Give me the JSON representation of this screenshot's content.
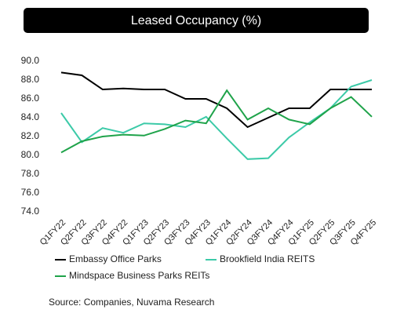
{
  "chart_data": {
    "type": "line",
    "title": "Leased Occupancy (%)",
    "categories": [
      "Q1FY22",
      "Q2FY22",
      "Q3FY22",
      "Q4FY22",
      "Q1FY23",
      "Q2FY23",
      "Q3FY23",
      "Q4FY23",
      "Q1FY24",
      "Q2FY24",
      "Q3FY24",
      "Q4FY24",
      "Q1FY25",
      "Q2FY25",
      "Q3FY25",
      "Q4FY25"
    ],
    "series": [
      {
        "name": "Embassy Office Parks",
        "color": "#000000",
        "values": [
          88.8,
          88.5,
          87.0,
          87.1,
          87.0,
          87.0,
          86.0,
          86.0,
          85.0,
          83.0,
          84.0,
          85.0,
          85.0,
          87.0,
          87.0,
          87.0
        ]
      },
      {
        "name": "Brookfield India REITS",
        "color": "#3ccaa8",
        "values": [
          84.5,
          81.4,
          82.9,
          82.4,
          83.4,
          83.3,
          83.0,
          84.1,
          81.8,
          79.6,
          79.7,
          81.9,
          83.5,
          85.0,
          87.3,
          88.0
        ]
      },
      {
        "name": "Mindspace Business Parks REITs",
        "color": "#1fa34a",
        "values": [
          80.3,
          81.5,
          82.0,
          82.2,
          82.1,
          82.8,
          83.7,
          83.4,
          86.9,
          83.8,
          85.0,
          83.8,
          83.3,
          85.0,
          86.2,
          84.1
        ]
      }
    ],
    "ylim": [
      74,
      90
    ],
    "yticks": [
      {
        "value": 74,
        "label": "74.0"
      },
      {
        "value": 76,
        "label": "76.0"
      },
      {
        "value": 78,
        "label": "78.0"
      },
      {
        "value": 80,
        "label": "80.0"
      },
      {
        "value": 82,
        "label": "82.0"
      },
      {
        "value": 84,
        "label": "84.0"
      },
      {
        "value": 86,
        "label": "86.0"
      },
      {
        "value": 88,
        "label": "88.0"
      },
      {
        "value": 90,
        "label": "90.0"
      }
    ],
    "grid": false,
    "legend": "bottom",
    "source": "Source: Companies, Nuvama Research"
  }
}
